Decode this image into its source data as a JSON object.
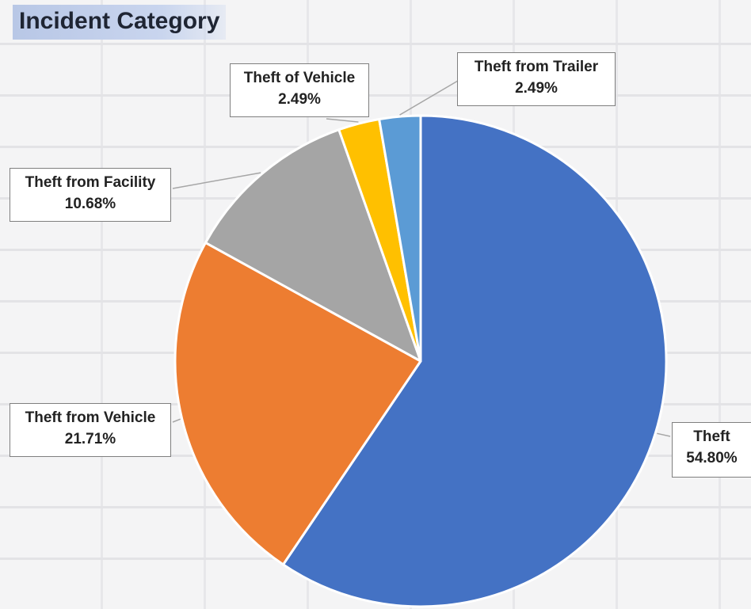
{
  "title": "Incident Category",
  "chart_data": {
    "type": "pie",
    "title": "Incident Category",
    "slices": [
      {
        "label": "Theft",
        "value": 54.8,
        "value_label": "54.80%",
        "color": "#4472c4"
      },
      {
        "label": "Theft from Vehicle",
        "value": 21.71,
        "value_label": "21.71%",
        "color": "#ed7d31"
      },
      {
        "label": "Theft from Facility",
        "value": 10.68,
        "value_label": "10.68%",
        "color": "#a5a5a5"
      },
      {
        "label": "Theft of Vehicle",
        "value": 2.49,
        "value_label": "2.49%",
        "color": "#ffc000"
      },
      {
        "label": "Theft from Trailer",
        "value": 2.49,
        "value_label": "2.49%",
        "color": "#5b9bd5"
      }
    ]
  }
}
